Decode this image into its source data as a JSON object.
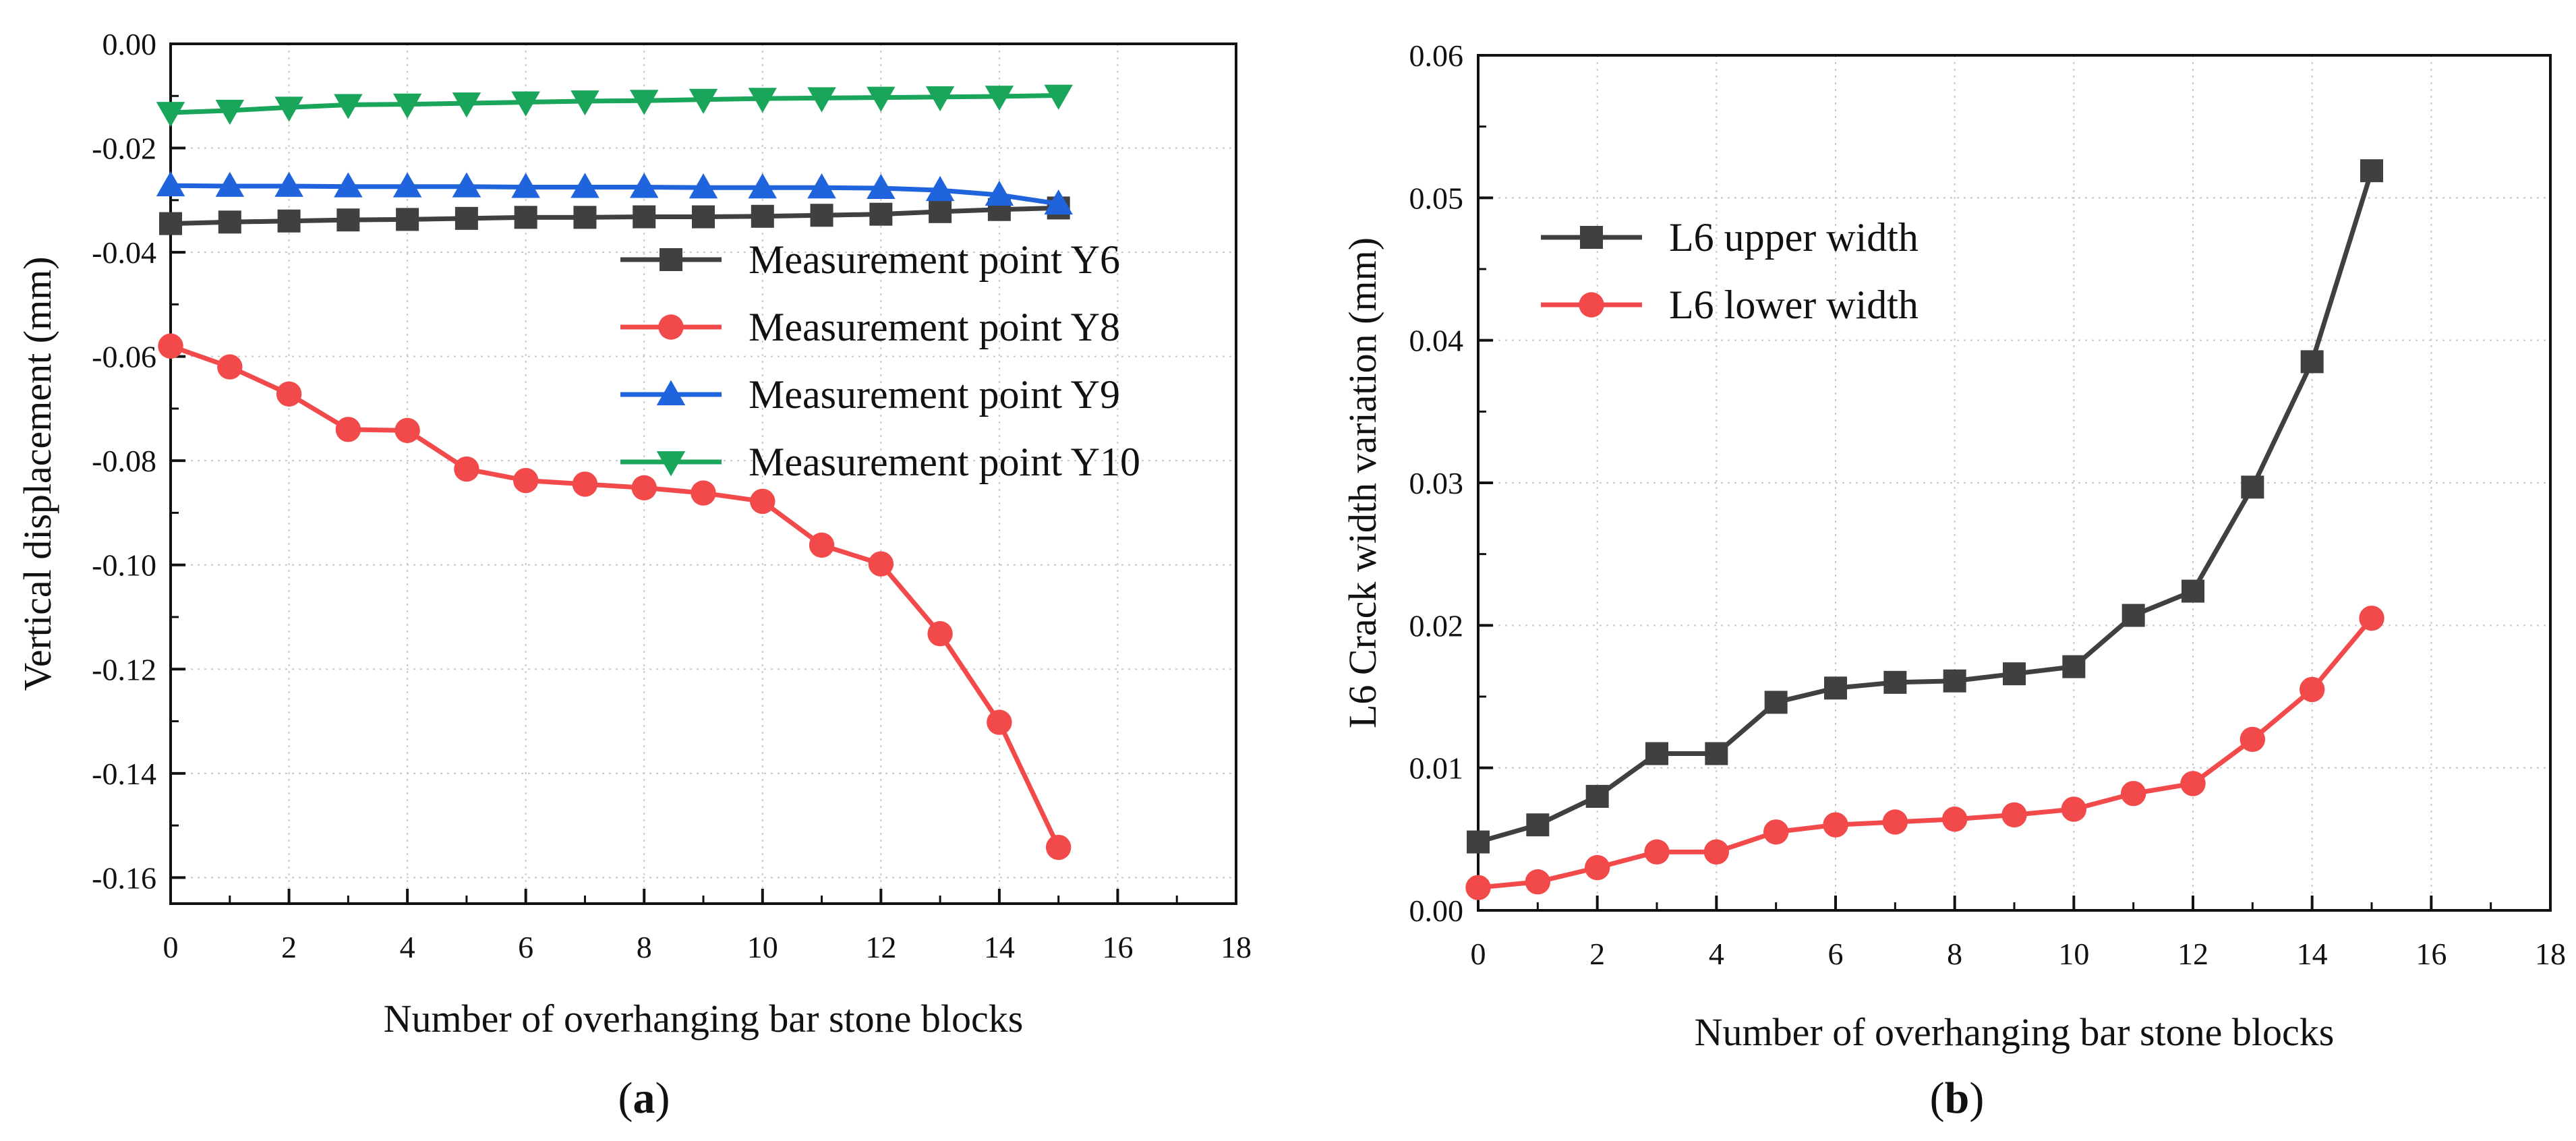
{
  "chart_data": [
    {
      "type": "line",
      "panel_label": "a",
      "xlabel": "Number of overhanging bar stone blocks",
      "ylabel": "Vertical displacement (mm)",
      "xlim": [
        0,
        18
      ],
      "ylim": [
        -0.165,
        0
      ],
      "xticks": [
        0,
        2,
        4,
        6,
        8,
        10,
        12,
        14,
        16,
        18
      ],
      "xtick_labels": [
        "0",
        "2",
        "4",
        "6",
        "8",
        "10",
        "12",
        "14",
        "16",
        "18"
      ],
      "yticks": [
        0,
        -0.02,
        -0.04,
        -0.06,
        -0.08,
        -0.1,
        -0.12,
        -0.14,
        -0.16
      ],
      "ytick_labels": [
        "0.00",
        "-0.02",
        "-0.04",
        "-0.06",
        "-0.08",
        "-0.10",
        "-0.12",
        "-0.14",
        "-0.16"
      ],
      "grid": true,
      "legend_position": "right-upper",
      "x": [
        0,
        1,
        2,
        3,
        4,
        5,
        6,
        7,
        8,
        9,
        10,
        11,
        12,
        13,
        14,
        15
      ],
      "series": [
        {
          "name": "Measurement point Y6",
          "color": "#404040",
          "marker": "square",
          "values": [
            -0.0345,
            -0.0342,
            -0.034,
            -0.0338,
            -0.0337,
            -0.0335,
            -0.0333,
            -0.0333,
            -0.0332,
            -0.0332,
            -0.0331,
            -0.0329,
            -0.0327,
            -0.0322,
            -0.0318,
            -0.0315
          ]
        },
        {
          "name": "Measurement point Y8",
          "color": "#f24a4a",
          "marker": "circle",
          "values": [
            -0.058,
            -0.062,
            -0.0672,
            -0.074,
            -0.0742,
            -0.0816,
            -0.0838,
            -0.0845,
            -0.0852,
            -0.0862,
            -0.0878,
            -0.0962,
            -0.0998,
            -0.1132,
            -0.1302,
            -0.1542
          ]
        },
        {
          "name": "Measurement point Y9",
          "color": "#1f64dc",
          "marker": "triangle-up",
          "values": [
            -0.0272,
            -0.0273,
            -0.0273,
            -0.0274,
            -0.0274,
            -0.0274,
            -0.0275,
            -0.0275,
            -0.0275,
            -0.0276,
            -0.0276,
            -0.0276,
            -0.0277,
            -0.0281,
            -0.029,
            -0.0307
          ]
        },
        {
          "name": "Measurement point Y10",
          "color": "#19a55a",
          "marker": "triangle-down",
          "values": [
            -0.0132,
            -0.0128,
            -0.0122,
            -0.0117,
            -0.0116,
            -0.0114,
            -0.0112,
            -0.011,
            -0.0109,
            -0.0107,
            -0.0105,
            -0.0104,
            -0.0103,
            -0.0102,
            -0.0101,
            -0.0099
          ]
        }
      ]
    },
    {
      "type": "line",
      "panel_label": "b",
      "xlabel": "Number of overhanging bar stone blocks",
      "ylabel": "L6 Crack width variation (mm)",
      "xlim": [
        0,
        18
      ],
      "ylim": [
        0,
        0.06
      ],
      "xticks": [
        0,
        2,
        4,
        6,
        8,
        10,
        12,
        14,
        16,
        18
      ],
      "xtick_labels": [
        "0",
        "2",
        "4",
        "6",
        "8",
        "10",
        "12",
        "14",
        "16",
        "18"
      ],
      "yticks": [
        0,
        0.01,
        0.02,
        0.03,
        0.04,
        0.05,
        0.06
      ],
      "ytick_labels": [
        "0.00",
        "0.01",
        "0.02",
        "0.03",
        "0.04",
        "0.05",
        "0.06"
      ],
      "grid": true,
      "legend_position": "top-left",
      "x": [
        0,
        1,
        2,
        3,
        4,
        5,
        6,
        7,
        8,
        9,
        10,
        11,
        12,
        13,
        14,
        15
      ],
      "series": [
        {
          "name": "L6 upper width",
          "color": "#404040",
          "marker": "square",
          "values": [
            0.0048,
            0.006,
            0.008,
            0.011,
            0.011,
            0.0146,
            0.0156,
            0.016,
            0.0161,
            0.0166,
            0.0171,
            0.0207,
            0.0224,
            0.0297,
            0.0385,
            0.0519
          ]
        },
        {
          "name": "L6 lower width",
          "color": "#f24a4a",
          "marker": "circle",
          "values": [
            0.0016,
            0.002,
            0.003,
            0.0041,
            0.0041,
            0.0055,
            0.006,
            0.0062,
            0.0064,
            0.0067,
            0.0071,
            0.0082,
            0.0089,
            0.012,
            0.0155,
            0.0205
          ]
        }
      ]
    }
  ]
}
